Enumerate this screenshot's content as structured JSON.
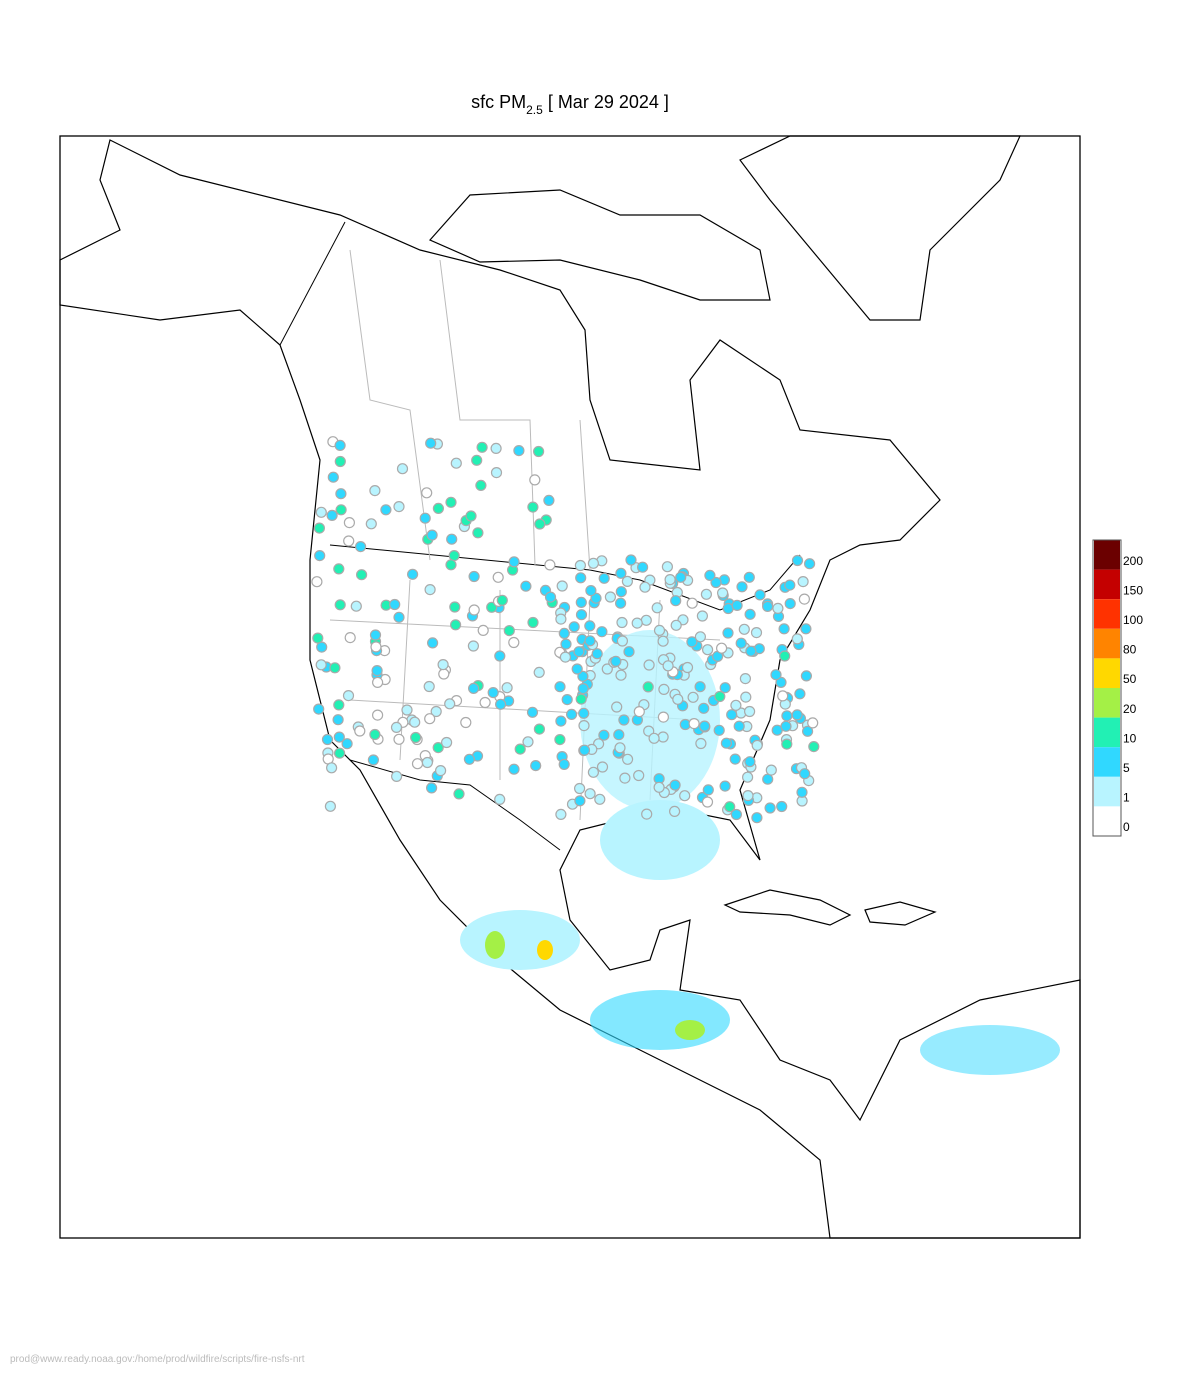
{
  "title": {
    "prefix": "sfc PM",
    "subscript": "2.5",
    "suffix": "[ Mar 29 2024 ]"
  },
  "legend": {
    "levels": [
      {
        "label": "200",
        "color": "#6b0000"
      },
      {
        "label": "150",
        "color": "#c40000"
      },
      {
        "label": "100",
        "color": "#ff3200"
      },
      {
        "label": "80",
        "color": "#ff8400"
      },
      {
        "label": "50",
        "color": "#ffd800"
      },
      {
        "label": "20",
        "color": "#a4f046"
      },
      {
        "label": "10",
        "color": "#22f0b4"
      },
      {
        "label": "5",
        "color": "#30d8ff"
      },
      {
        "label": "1",
        "color": "#b8f4ff"
      },
      {
        "label": "0",
        "color": "#ffffff"
      }
    ]
  },
  "footer": "prod@www.ready.noaa.gov:/home/prod/wildfire/scripts/fire-nsfs-nrt"
}
